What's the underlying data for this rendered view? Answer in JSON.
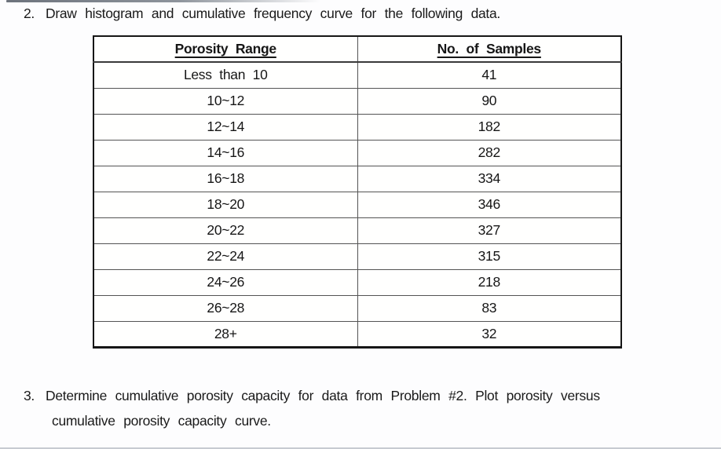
{
  "problem2": {
    "number": "2.",
    "text": "Draw histogram and cumulative frequency curve for the following data."
  },
  "table": {
    "headers": [
      "Porosity Range",
      "No. of Samples"
    ],
    "rows": [
      [
        "Less than 10",
        "41"
      ],
      [
        "10~12",
        "90"
      ],
      [
        "12~14",
        "182"
      ],
      [
        "14~16",
        "282"
      ],
      [
        "16~18",
        "334"
      ],
      [
        "18~20",
        "346"
      ],
      [
        "20~22",
        "327"
      ],
      [
        "22~24",
        "315"
      ],
      [
        "24~26",
        "218"
      ],
      [
        "26~28",
        "83"
      ],
      [
        "28+",
        "32"
      ]
    ]
  },
  "problem3": {
    "number": "3.",
    "line1": "Determine cumulative porosity capacity for data from Problem #2. Plot porosity versus",
    "line2": "cumulative porosity capacity curve."
  },
  "colors": {
    "text": "#1a1a1a",
    "table_outer_border": "#161616",
    "table_inner_border": "#545454",
    "background": "#fdfdfe",
    "scan_artifact": "#8e949c"
  }
}
